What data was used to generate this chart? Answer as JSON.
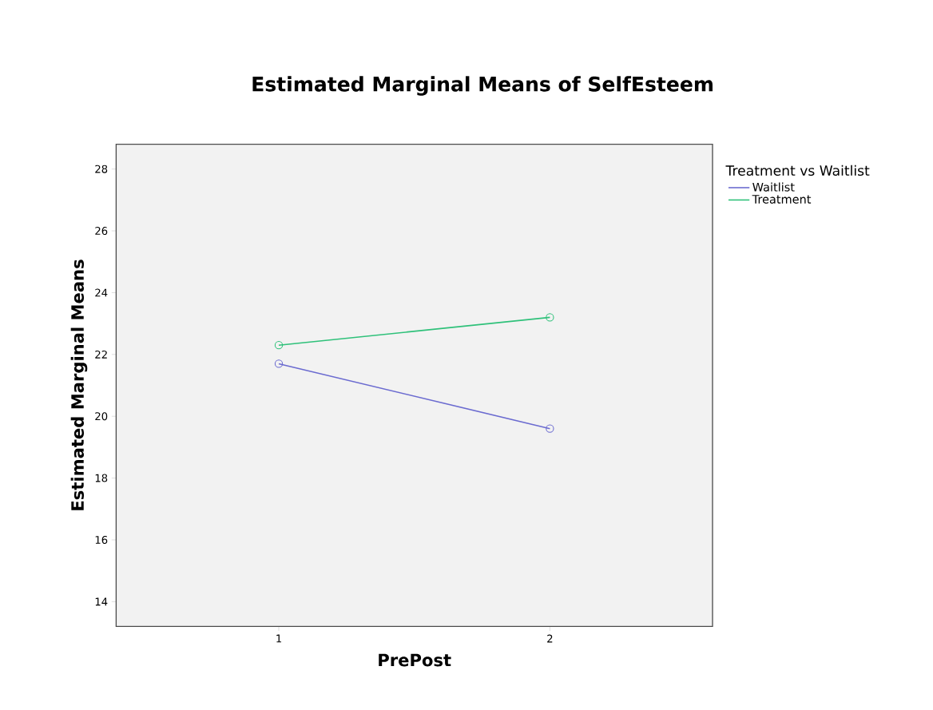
{
  "chart_data": {
    "type": "line",
    "title": "Estimated Marginal Means of SelfEsteem",
    "xlabel": "PrePost",
    "ylabel": "Estimated Marginal Means",
    "legend_title": "Treatment vs Waitlist",
    "x": [
      1,
      2
    ],
    "xlim": [
      0.4,
      2.6
    ],
    "xticks": [
      1,
      2
    ],
    "ylim": [
      13.2,
      28.8
    ],
    "yticks": [
      14,
      16,
      18,
      20,
      22,
      24,
      26,
      28
    ],
    "series": [
      {
        "name": "Waitlist",
        "color": "#6b6bd0",
        "values": [
          21.7,
          19.6
        ]
      },
      {
        "name": "Treatment",
        "color": "#2fc17a",
        "values": [
          22.3,
          23.2
        ]
      }
    ],
    "marker": "circle",
    "line_style": "solid",
    "legend": "top right",
    "grid": false
  }
}
